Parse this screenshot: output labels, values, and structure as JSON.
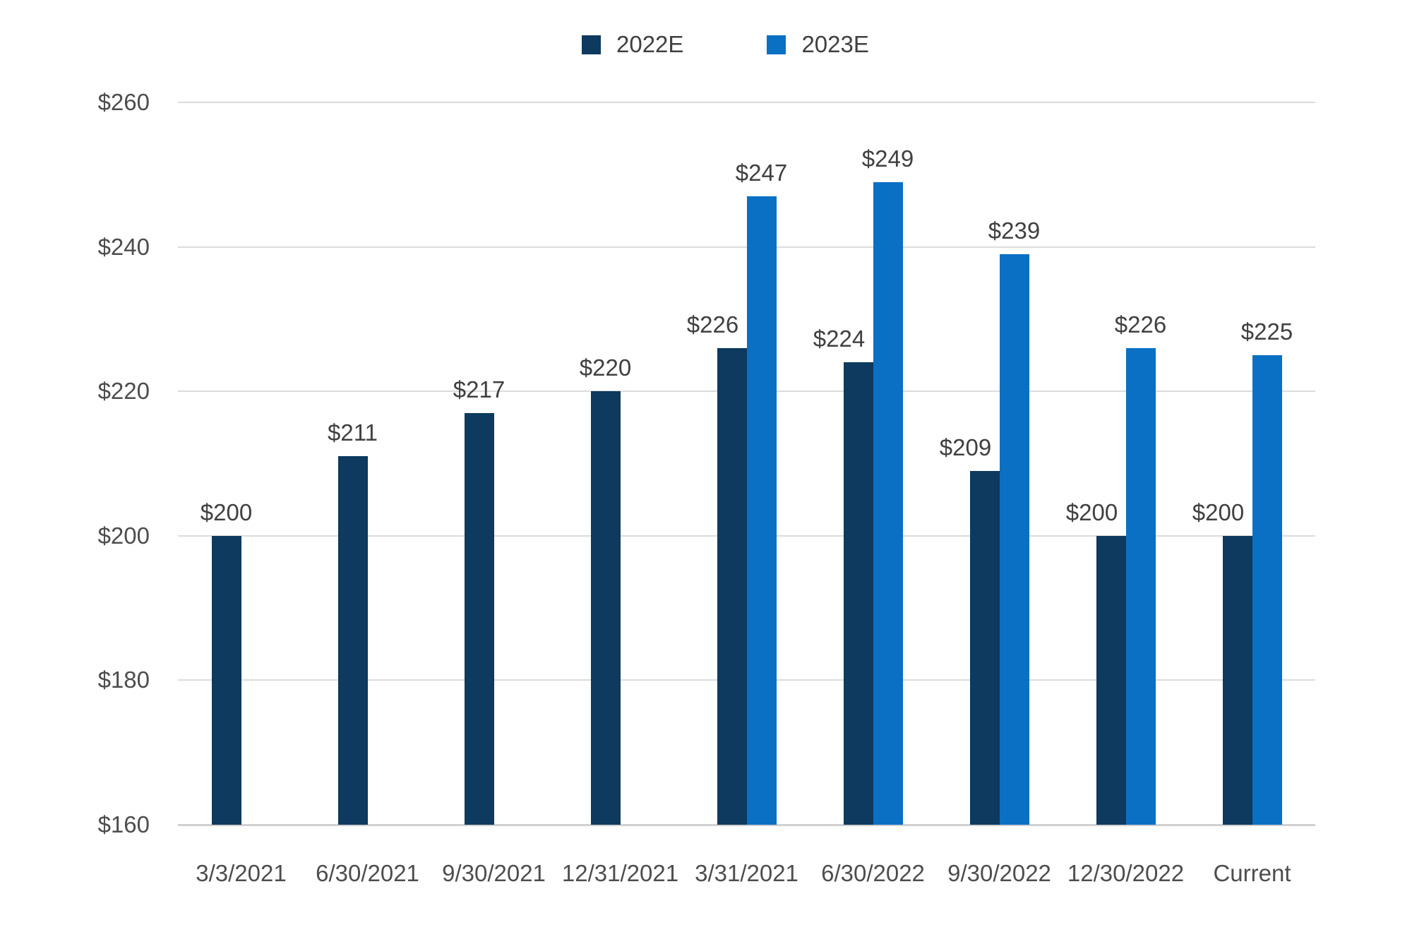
{
  "chart_data": {
    "type": "bar",
    "title": "",
    "categories": [
      "3/3/2021",
      "6/30/2021",
      "9/30/2021",
      "12/31/2021",
      "3/31/2021",
      "6/30/2022",
      "9/30/2022",
      "12/30/2022",
      "Current"
    ],
    "series": [
      {
        "name": "2022E",
        "color": "#0d3a5e",
        "values": [
          200,
          211,
          217,
          220,
          226,
          224,
          209,
          200,
          200
        ],
        "labels": [
          "$200",
          "$211",
          "$217",
          "$220",
          "$226",
          "$224",
          "$209",
          "$200",
          "$200"
        ]
      },
      {
        "name": "2023E",
        "color": "#0a70c4",
        "values": [
          null,
          null,
          null,
          null,
          247,
          249,
          239,
          226,
          225
        ],
        "labels": [
          null,
          null,
          null,
          null,
          "$247",
          "$249",
          "$239",
          "$226",
          "$225"
        ]
      }
    ],
    "xlabel": "",
    "ylabel": "",
    "ylim": [
      160,
      260
    ],
    "yticks": [
      {
        "value": 160,
        "label": "$160"
      },
      {
        "value": 180,
        "label": "$180"
      },
      {
        "value": 200,
        "label": "$200"
      },
      {
        "value": 220,
        "label": "$220"
      },
      {
        "value": 240,
        "label": "$240"
      },
      {
        "value": 260,
        "label": "$260"
      }
    ],
    "grid": true,
    "legend_position": "top-center"
  },
  "colors": {
    "grid": "#dcdcdc",
    "baseline": "#d0d0d0",
    "axis_text": "#4d4d4d",
    "data_label_text": "#404040",
    "background": "#ffffff"
  }
}
